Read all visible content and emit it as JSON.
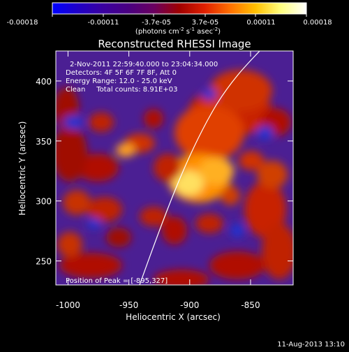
{
  "colorbar": {
    "tick_labels": [
      "-0.00018",
      "-0.00011",
      "-3.7e-05",
      "3.7e-05",
      "0.00011",
      "0.00018"
    ],
    "units": "(photons cm",
    "units_exp1": "-2",
    "units_mid": " s",
    "units_exp2": "-1",
    "units_mid2": " asec",
    "units_exp3": "-2",
    "units_end": ")",
    "stops": [
      "#0000ff",
      "#1f00c8",
      "#3a00a0",
      "#4a0080",
      "#6a0060",
      "#a00000",
      "#e02000",
      "#ff7000",
      "#ffc000",
      "#ffff80",
      "#ffffff"
    ]
  },
  "image": {
    "title": "Reconstructed RHESSI Image",
    "info_lines": [
      "2-Nov-2011 22:59:40.000 to 23:04:34.000",
      "Detectors: 4F 5F 6F 7F 8F, Att 0",
      "Energy Range: 12.0 - 25.0 keV",
      "Clean     Total counts: 8.91E+03"
    ],
    "peak_label": "Position of Peak = [-895,327]",
    "x_axis_label": "Heliocentric X (arcsec)",
    "y_axis_label": "Heliocentric Y (arcsec)",
    "x_ticks": [
      -1000,
      -950,
      -900,
      -850
    ],
    "y_ticks": [
      250,
      300,
      350,
      400
    ],
    "x_tick_labels": [
      "-1000",
      "-950",
      "-900",
      "-850"
    ],
    "y_tick_labels": [
      "250",
      "300",
      "350",
      "400"
    ],
    "x_range": [
      -1010,
      -815
    ],
    "y_range": [
      230,
      425
    ],
    "peak_position": [
      -895,
      327
    ]
  },
  "timestamp": "11-Aug-2013 13:10"
}
